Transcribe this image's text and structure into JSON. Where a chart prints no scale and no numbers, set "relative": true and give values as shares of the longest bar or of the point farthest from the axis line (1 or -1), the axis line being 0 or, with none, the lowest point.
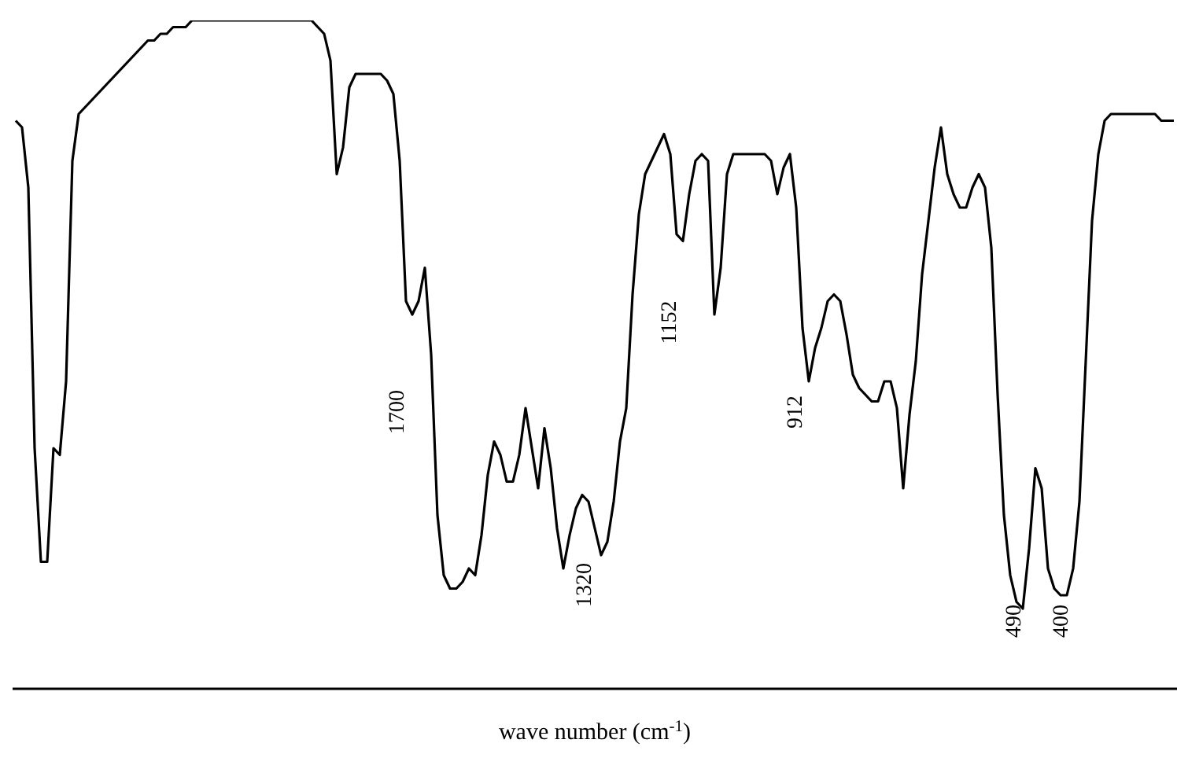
{
  "chart_data": {
    "type": "line",
    "relative": true,
    "xlabel": "wave number (cm$^{-1}$)",
    "categories": [
      null,
      null,
      null,
      null,
      null,
      null,
      null,
      null,
      null,
      null,
      null,
      null,
      null,
      null,
      null,
      null,
      null,
      null,
      null,
      null,
      null,
      null,
      null,
      null,
      null,
      null,
      null,
      null,
      null,
      null,
      null,
      null,
      null,
      null,
      null,
      null,
      null,
      null,
      null,
      null,
      null,
      null,
      null,
      null,
      null,
      null,
      null,
      null,
      null,
      null,
      null,
      null,
      null,
      null,
      null,
      null,
      null,
      null,
      null,
      null,
      null,
      null,
      null,
      null,
      null,
      null,
      null,
      null,
      null,
      null,
      null,
      null,
      null,
      null,
      null,
      null,
      null,
      null,
      null,
      null,
      null,
      null,
      null,
      null,
      null,
      null,
      null,
      null,
      null,
      null,
      null,
      null,
      null,
      null,
      null,
      null,
      null,
      null,
      null,
      null,
      null,
      null,
      null,
      null,
      null,
      null,
      null,
      null,
      null,
      null,
      null,
      null,
      null,
      null,
      null,
      null,
      null,
      null,
      null,
      null,
      null,
      null,
      null,
      null,
      null,
      null,
      null,
      null,
      null,
      null,
      null,
      null,
      null,
      null,
      null,
      null,
      null,
      null,
      null,
      null,
      null,
      null,
      null,
      null,
      null,
      null,
      null,
      null,
      null,
      null,
      null,
      null,
      null,
      null,
      null,
      null,
      null,
      null,
      null,
      null,
      null,
      null,
      null,
      null,
      null,
      null,
      null,
      null,
      null,
      null,
      null,
      null,
      null,
      null,
      null,
      null,
      null,
      null,
      null,
      null,
      null,
      null,
      null,
      null,
      null
    ],
    "series": [
      {
        "color": "#000000",
        "values": [
          0.85,
          0.84,
          0.75,
          0.36,
          0.19,
          0.19,
          0.36,
          0.35,
          0.46,
          0.79,
          0.86,
          0.87,
          0.88,
          0.89,
          0.9,
          0.91,
          0.92,
          0.93,
          0.94,
          0.95,
          0.96,
          0.97,
          0.97,
          0.98,
          0.98,
          0.99,
          0.99,
          0.99,
          1.0,
          1.0,
          1.0,
          1.0,
          1.0,
          1.0,
          1.0,
          1.0,
          1.0,
          1.0,
          1.0,
          1.0,
          1.0,
          1.0,
          1.0,
          1.0,
          1.0,
          1.0,
          1.0,
          1.0,
          0.99,
          0.98,
          0.94,
          0.77,
          0.81,
          0.9,
          0.92,
          0.92,
          0.92,
          0.92,
          0.92,
          0.91,
          0.89,
          0.79,
          0.58,
          0.56,
          0.58,
          0.63,
          0.5,
          0.26,
          0.17,
          0.15,
          0.15,
          0.16,
          0.18,
          0.17,
          0.23,
          0.32,
          0.37,
          0.35,
          0.31,
          0.31,
          0.35,
          0.42,
          0.36,
          0.3,
          0.39,
          0.33,
          0.24,
          0.18,
          0.23,
          0.27,
          0.29,
          0.28,
          0.24,
          0.2,
          0.22,
          0.28,
          0.37,
          0.42,
          0.59,
          0.71,
          0.77,
          0.79,
          0.81,
          0.83,
          0.8,
          0.68,
          0.67,
          0.74,
          0.79,
          0.8,
          0.79,
          0.56,
          0.63,
          0.77,
          0.8,
          0.8,
          0.8,
          0.8,
          0.8,
          0.8,
          0.79,
          0.74,
          0.78,
          0.8,
          0.72,
          0.54,
          0.46,
          0.51,
          0.54,
          0.58,
          0.59,
          0.58,
          0.53,
          0.47,
          0.45,
          0.44,
          0.43,
          0.43,
          0.46,
          0.46,
          0.42,
          0.3,
          0.41,
          0.49,
          0.62,
          0.7,
          0.78,
          0.84,
          0.77,
          0.74,
          0.72,
          0.72,
          0.75,
          0.77,
          0.75,
          0.66,
          0.44,
          0.26,
          0.17,
          0.13,
          0.12,
          0.21,
          0.33,
          0.3,
          0.18,
          0.15,
          0.14,
          0.14,
          0.18,
          0.28,
          0.49,
          0.7,
          0.8,
          0.85,
          0.86,
          0.86,
          0.86,
          0.86,
          0.86,
          0.86,
          0.86,
          0.86,
          0.85,
          0.85,
          0.85
        ]
      }
    ],
    "annotations": [
      "1700",
      "1320",
      "1152",
      "912",
      "490",
      "400"
    ]
  }
}
